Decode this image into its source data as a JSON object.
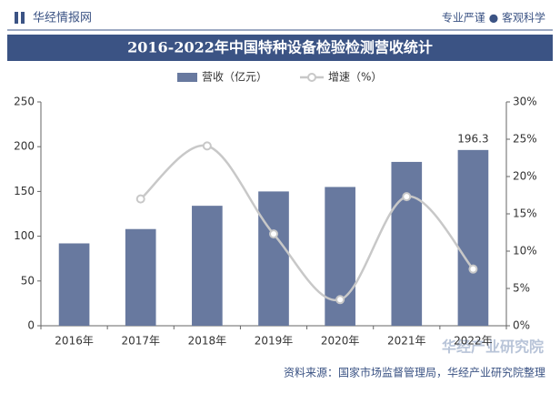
{
  "header": {
    "brand": "华经情报网",
    "slogan": "专业严谨 ● 客观科学"
  },
  "footer": {
    "source": "资料来源：国家市场监督管理局，华经产业研究院整理",
    "logo": "华经产业研究院"
  },
  "chart_data": {
    "type": "bar-line",
    "title": "2016-2022年中国特种设备检验检测营收统计",
    "categories": [
      "2016年",
      "2017年",
      "2018年",
      "2019年",
      "2020年",
      "2021年",
      "2022年"
    ],
    "series": [
      {
        "name": "营收（亿元）",
        "color": "#68799f",
        "type": "bar",
        "values": [
          92,
          108,
          134,
          150,
          155,
          183,
          196.3
        ],
        "value_labels": [
          null,
          null,
          null,
          null,
          null,
          null,
          "196.3"
        ]
      },
      {
        "name": "增速（%）",
        "color": "#c8c8c8",
        "type": "line",
        "axis": "y2",
        "values": [
          null,
          17.0,
          24.1,
          12.3,
          3.5,
          17.3,
          7.6
        ]
      }
    ],
    "ylim": [
      0,
      250
    ],
    "yticks": [
      0,
      50,
      100,
      150,
      200,
      250
    ],
    "y2lim": [
      0,
      30
    ],
    "y2ticks": [
      {
        "value": 0,
        "label": "0%"
      },
      {
        "value": 5,
        "label": "5%"
      },
      {
        "value": 10,
        "label": "10%"
      },
      {
        "value": 15,
        "label": "15%"
      },
      {
        "value": 20,
        "label": "20%"
      },
      {
        "value": 25,
        "label": "25%"
      },
      {
        "value": 30,
        "label": "30%"
      }
    ]
  }
}
